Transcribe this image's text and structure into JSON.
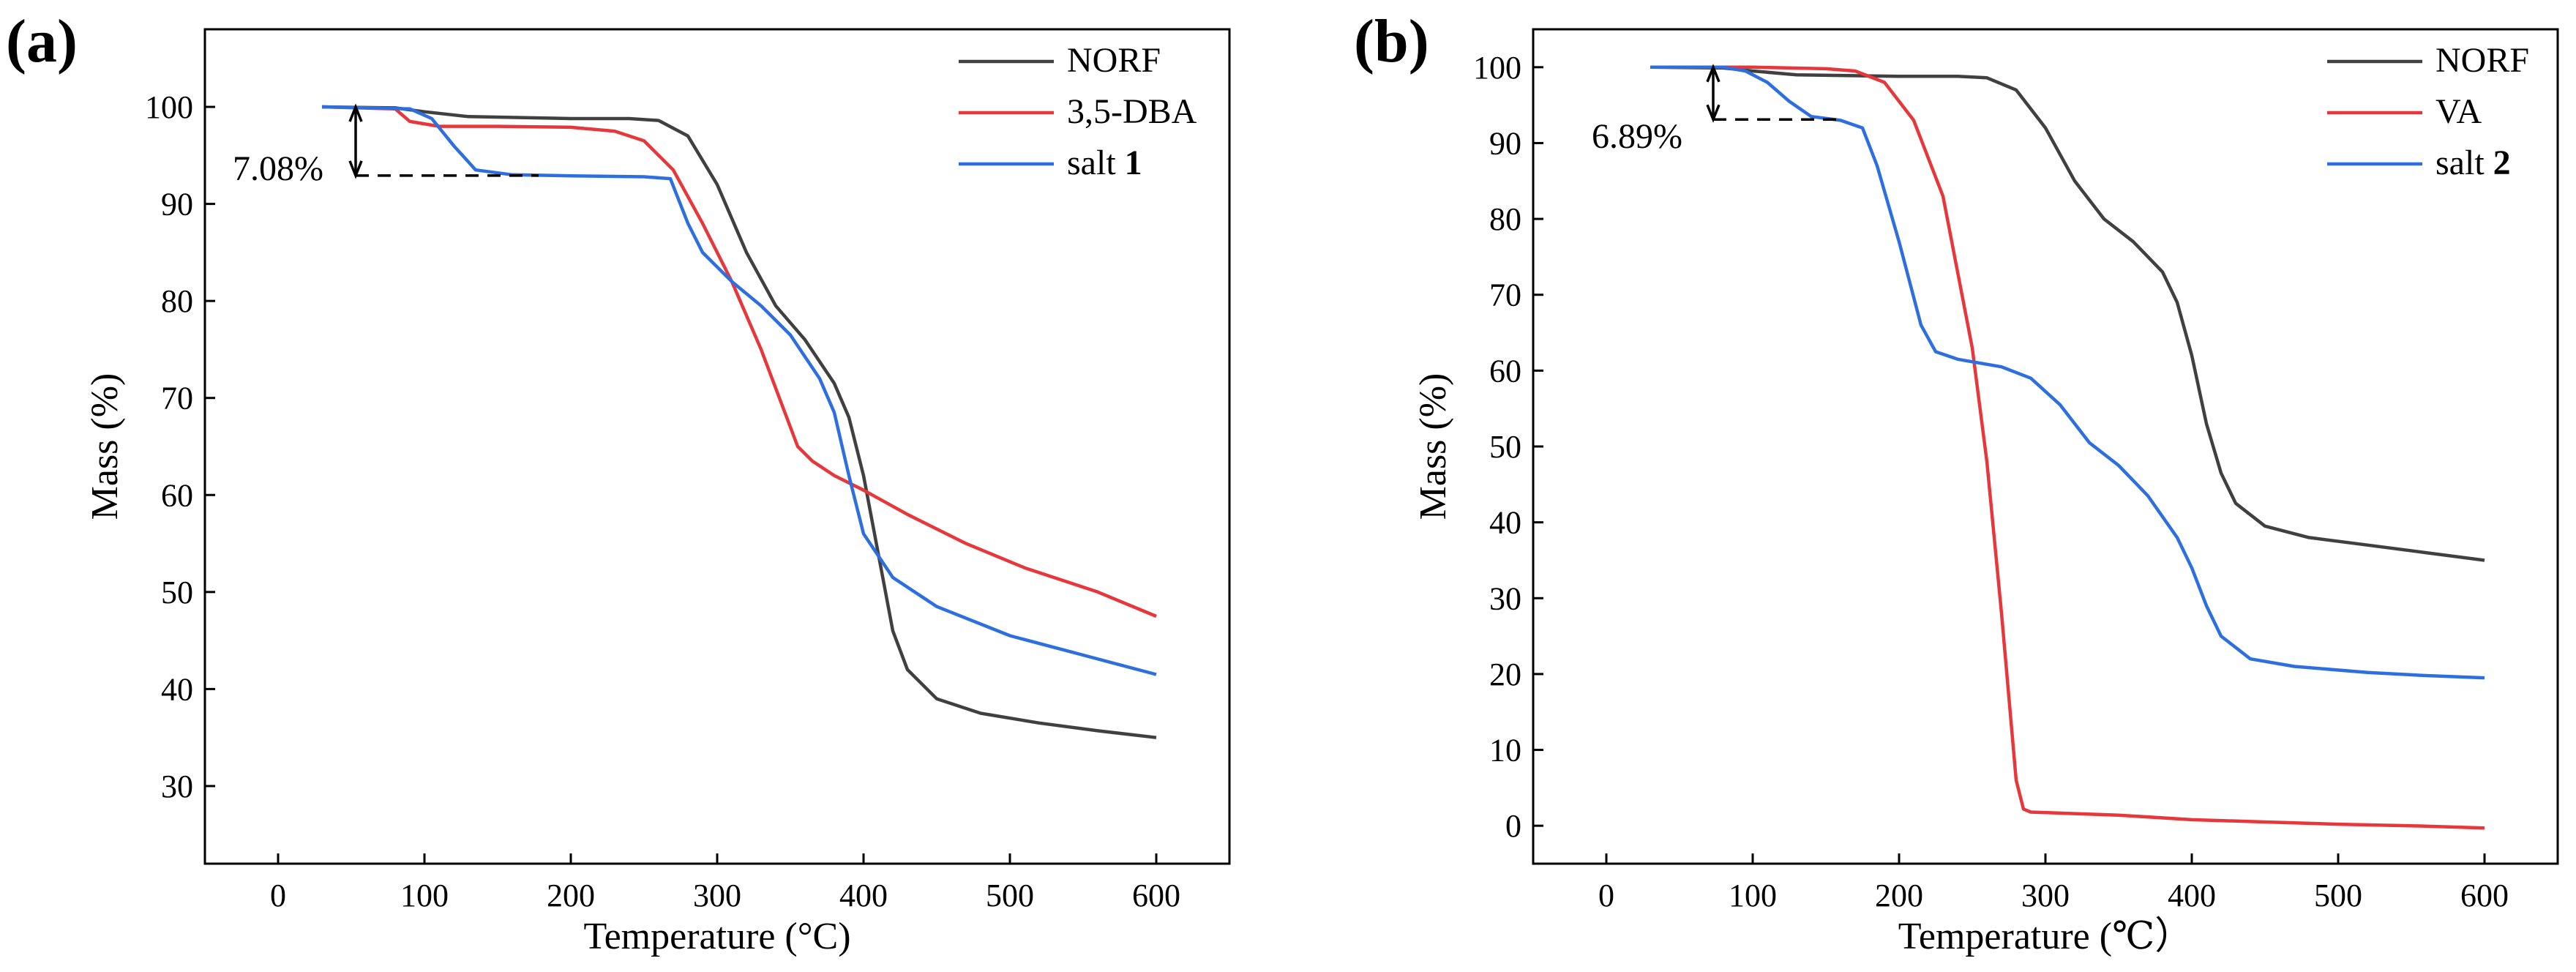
{
  "chart_data": [
    {
      "type": "line",
      "panel_label": "(a)",
      "xlabel": "Temperature (°C)",
      "ylabel": "Mass (%)",
      "xlim": [
        -50,
        650
      ],
      "ylim": [
        22,
        108
      ],
      "xticks": [
        0,
        100,
        200,
        300,
        400,
        500,
        600
      ],
      "yticks": [
        30,
        40,
        50,
        60,
        70,
        80,
        90,
        100
      ],
      "legend": "top-right",
      "series": [
        {
          "name": "NORF",
          "name_bold": "",
          "color": "#404040",
          "x": [
            30,
            80,
            100,
            130,
            200,
            240,
            260,
            280,
            300,
            320,
            340,
            360,
            380,
            390,
            400,
            410,
            420,
            430,
            450,
            480,
            520,
            560,
            600
          ],
          "y": [
            100,
            99.9,
            99.5,
            99.0,
            98.8,
            98.8,
            98.6,
            97.0,
            92.0,
            85.0,
            79.5,
            76.0,
            71.5,
            68.0,
            62.0,
            54.0,
            46.0,
            42.0,
            39.0,
            37.5,
            36.5,
            35.7,
            35.0
          ]
        },
        {
          "name": "3,5-DBA",
          "name_bold": "",
          "color": "#e8373b",
          "x": [
            30,
            80,
            90,
            110,
            150,
            200,
            230,
            250,
            270,
            290,
            310,
            330,
            345,
            355,
            365,
            380,
            400,
            430,
            470,
            510,
            560,
            600
          ],
          "y": [
            100,
            99.8,
            98.5,
            98.0,
            98.0,
            97.9,
            97.5,
            96.5,
            93.5,
            88.0,
            82.0,
            75.0,
            69.0,
            65.0,
            63.5,
            62.0,
            60.5,
            58.0,
            55.0,
            52.5,
            50.0,
            47.5
          ]
        },
        {
          "name": "salt ",
          "name_bold": "1",
          "color": "#2e6fe0",
          "x": [
            30,
            90,
            105,
            120,
            135,
            160,
            200,
            250,
            268,
            280,
            290,
            310,
            330,
            350,
            370,
            380,
            390,
            400,
            420,
            450,
            500,
            550,
            600
          ],
          "y": [
            100,
            99.8,
            98.8,
            96.0,
            93.5,
            93.0,
            92.9,
            92.8,
            92.6,
            88.0,
            85.0,
            82.0,
            79.5,
            76.5,
            72.0,
            68.5,
            62.0,
            56.0,
            51.5,
            48.5,
            45.5,
            43.5,
            41.5
          ]
        }
      ],
      "annotation": {
        "text": "7.08%",
        "x": 53,
        "y_top": 100,
        "y_bottom": 92.92,
        "dash_to_x": 178
      }
    },
    {
      "type": "line",
      "panel_label": "(b)",
      "xlabel": "Temperature (℃）",
      "ylabel": "Mass (%)",
      "xlim": [
        -50,
        650
      ],
      "ylim": [
        -5,
        105
      ],
      "xticks": [
        0,
        100,
        200,
        300,
        400,
        500,
        600
      ],
      "yticks": [
        0,
        10,
        20,
        30,
        40,
        50,
        60,
        70,
        80,
        90,
        100
      ],
      "legend": "top-right",
      "series": [
        {
          "name": "NORF",
          "name_bold": "",
          "color": "#404040",
          "x": [
            30,
            80,
            100,
            130,
            200,
            240,
            260,
            280,
            300,
            320,
            340,
            360,
            380,
            390,
            400,
            410,
            420,
            430,
            450,
            480,
            520,
            560,
            600
          ],
          "y": [
            100,
            99.9,
            99.5,
            99.0,
            98.8,
            98.8,
            98.6,
            97.0,
            92.0,
            85.0,
            80.0,
            77.0,
            73.0,
            69.0,
            62.0,
            53.0,
            46.5,
            42.5,
            39.5,
            38.0,
            37.0,
            36.0,
            35.0
          ]
        },
        {
          "name": "VA",
          "name_bold": "",
          "color": "#e8373b",
          "x": [
            30,
            100,
            150,
            170,
            190,
            210,
            230,
            250,
            260,
            270,
            280,
            285,
            290,
            320,
            350,
            400,
            450,
            500,
            550,
            600
          ],
          "y": [
            100,
            100,
            99.8,
            99.5,
            98.0,
            93.0,
            83.0,
            63.0,
            48.0,
            28.0,
            6.0,
            2.2,
            1.8,
            1.6,
            1.4,
            0.8,
            0.5,
            0.2,
            0.0,
            -0.3
          ]
        },
        {
          "name": "salt ",
          "name_bold": "2",
          "color": "#2e6fe0",
          "x": [
            30,
            80,
            95,
            110,
            125,
            140,
            160,
            175,
            185,
            200,
            215,
            225,
            240,
            270,
            290,
            310,
            330,
            350,
            370,
            390,
            400,
            410,
            420,
            440,
            470,
            520,
            560,
            600
          ],
          "y": [
            100,
            100,
            99.5,
            98.0,
            95.5,
            93.5,
            93.0,
            92.0,
            87.0,
            77.0,
            66.0,
            62.5,
            61.5,
            60.5,
            59.0,
            55.5,
            50.5,
            47.5,
            43.5,
            38.0,
            34.0,
            29.0,
            25.0,
            22.0,
            21.0,
            20.2,
            19.8,
            19.5
          ]
        }
      ],
      "annotation": {
        "text": "6.89%",
        "x": 73,
        "y_top": 100,
        "y_bottom": 93.11,
        "dash_to_x": 160
      }
    }
  ]
}
